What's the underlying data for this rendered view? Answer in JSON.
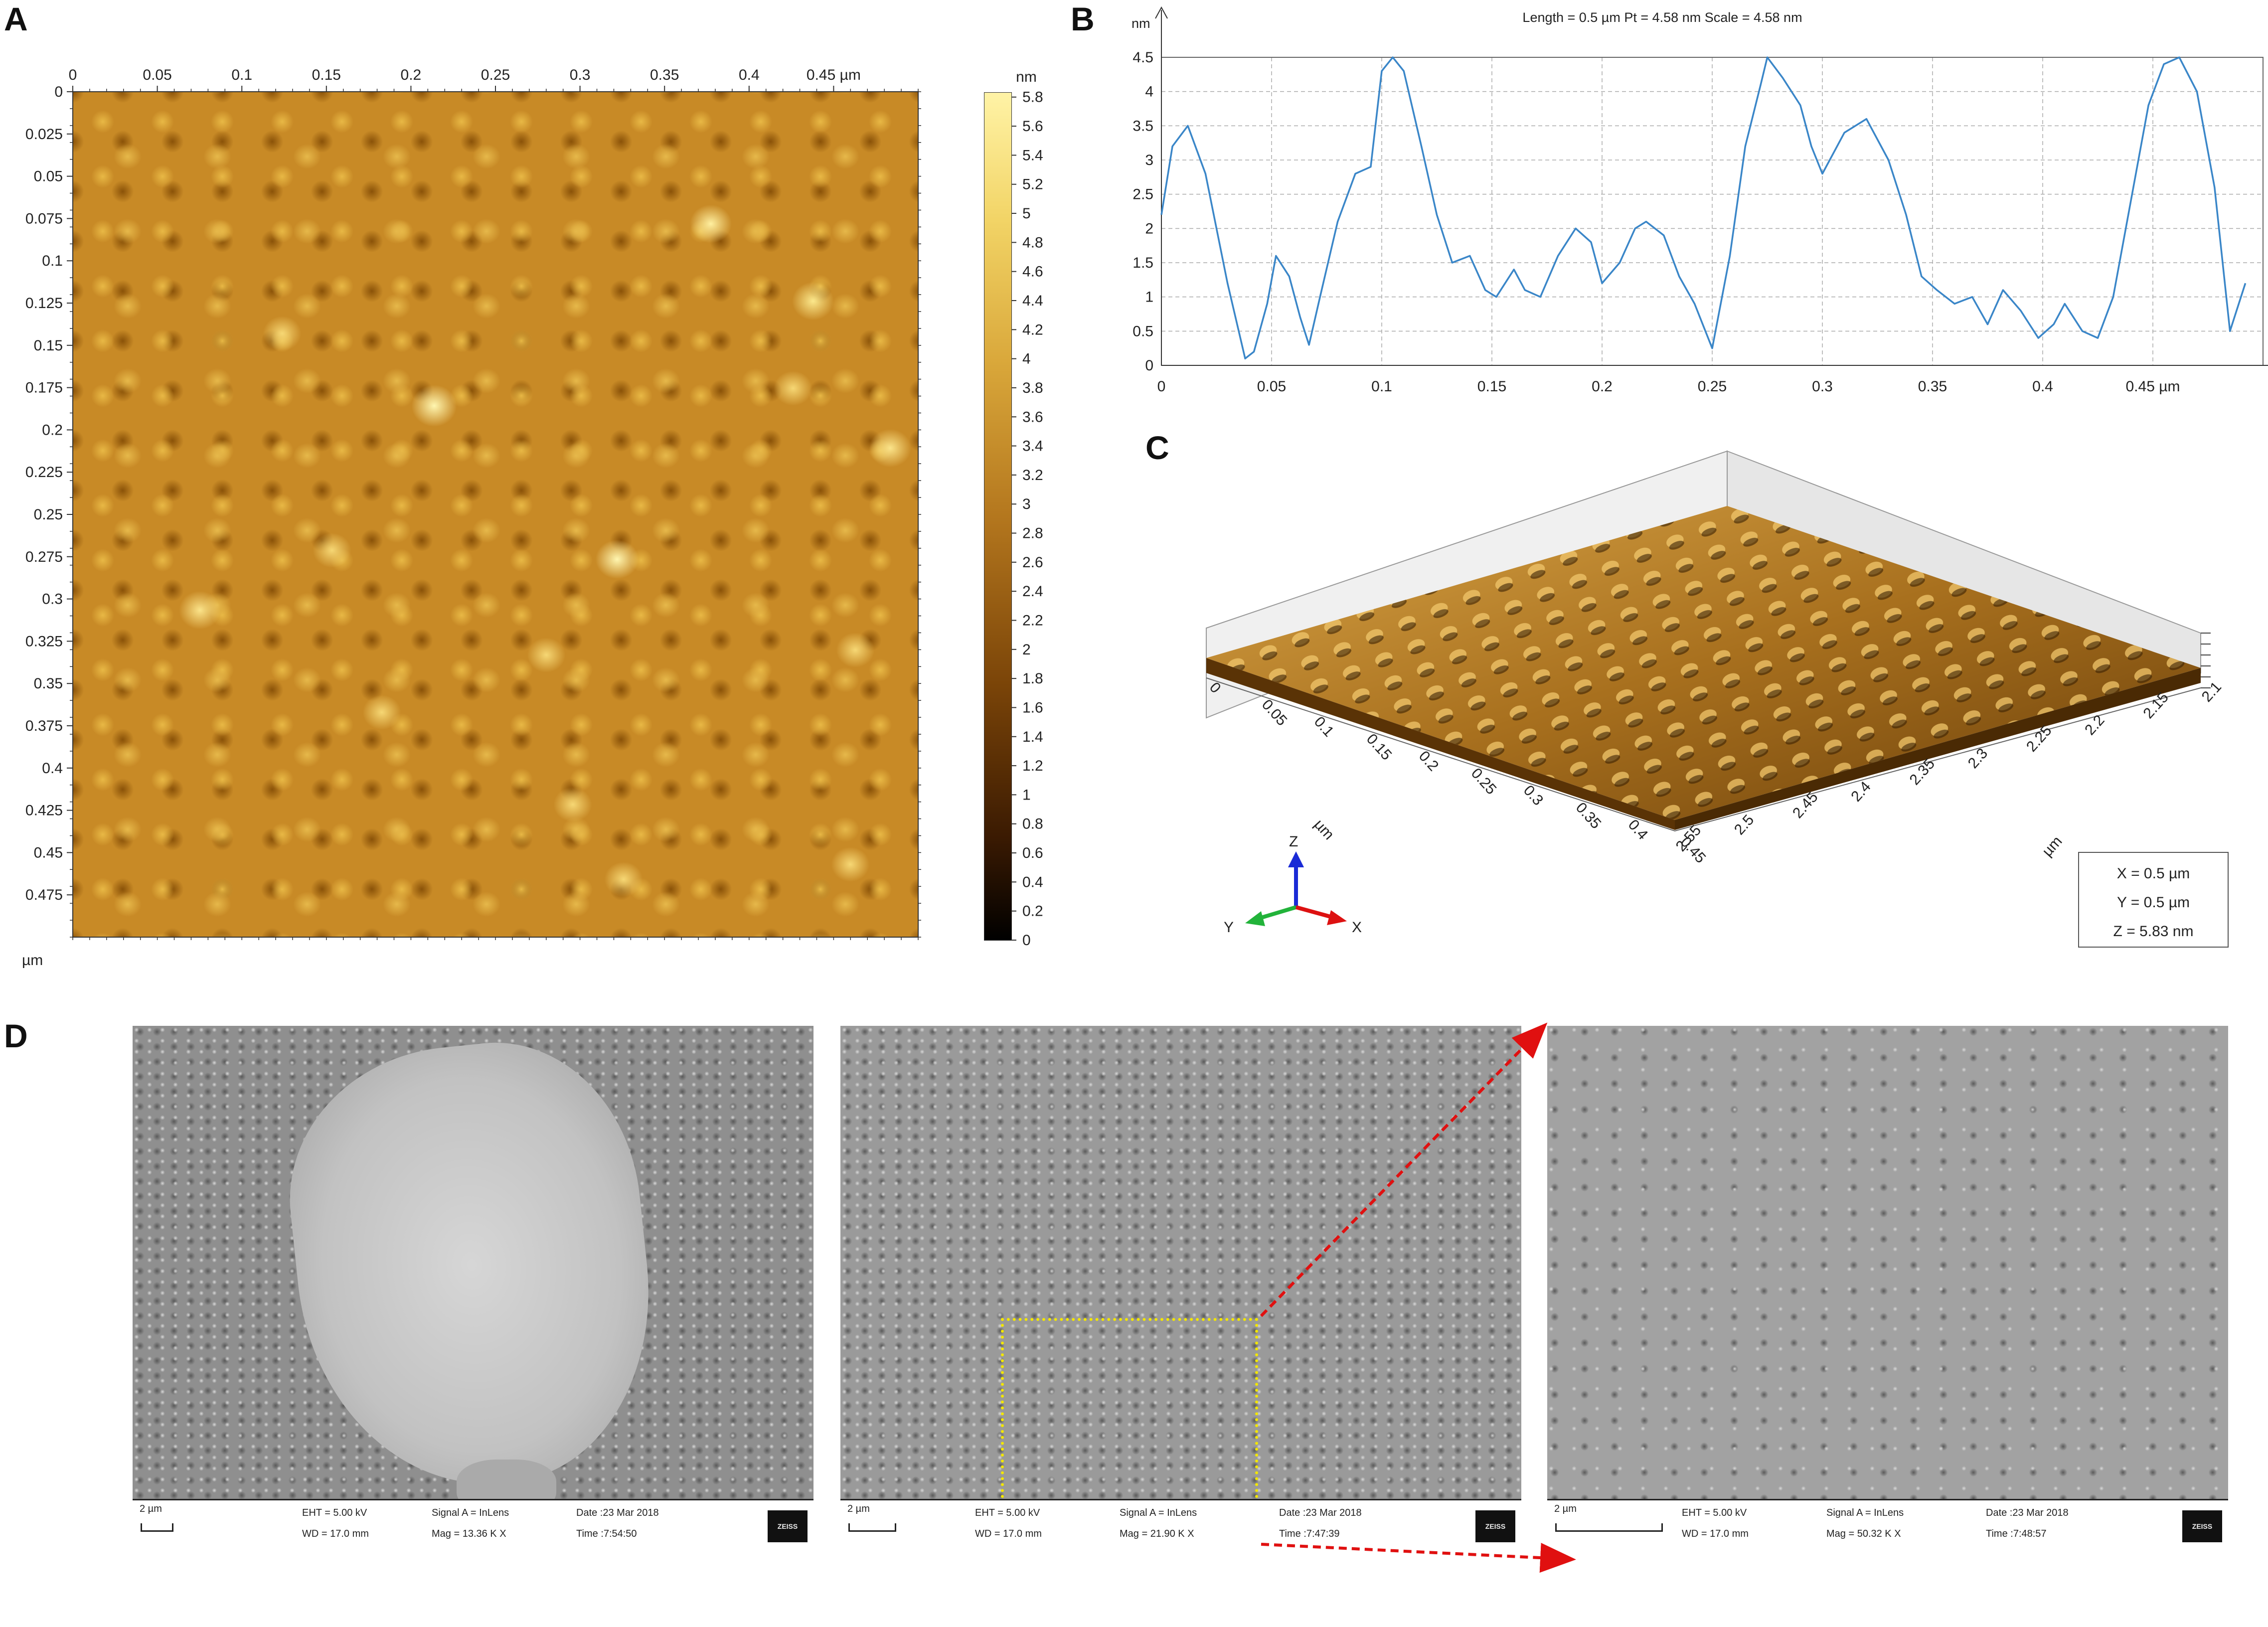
{
  "panels": {
    "A": "A",
    "B": "B",
    "C": "C",
    "D": "D"
  },
  "afm_map": {
    "x_ticks": [
      "0",
      "0.05",
      "0.1",
      "0.15",
      "0.2",
      "0.25",
      "0.3",
      "0.35",
      "0.4",
      "0.45 µm"
    ],
    "y_ticks": [
      "0",
      "0.025",
      "0.05",
      "0.075",
      "0.1",
      "0.125",
      "0.15",
      "0.175",
      "0.2",
      "0.225",
      "0.25",
      "0.275",
      "0.3",
      "0.325",
      "0.35",
      "0.375",
      "0.4",
      "0.425",
      "0.45",
      "0.475"
    ],
    "y_unit": "µm",
    "colorbar_unit": "nm",
    "colorbar_ticks": [
      "5.8",
      "5.6",
      "5.4",
      "5.2",
      "5",
      "4.8",
      "4.6",
      "4.4",
      "4.2",
      "4",
      "3.8",
      "3.6",
      "3.4",
      "3.2",
      "3",
      "2.8",
      "2.6",
      "2.4",
      "2.2",
      "2",
      "1.8",
      "1.6",
      "1.4",
      "1.2",
      "1",
      "0.8",
      "0.6",
      "0.4",
      "0.2",
      "0"
    ]
  },
  "chart_data": {
    "type": "line",
    "title": "Length = 0.5 µm  Pt = 4.58 nm  Scale = 4.58 nm",
    "ylabel": "nm",
    "x_unit": "µm",
    "xlim": [
      0,
      0.5
    ],
    "ylim": [
      0,
      4.5
    ],
    "x_ticks": [
      "0",
      "0.05",
      "0.1",
      "0.15",
      "0.2",
      "0.25",
      "0.3",
      "0.35",
      "0.4",
      "0.45 µm"
    ],
    "y_ticks": [
      "0",
      "0.5",
      "1",
      "1.5",
      "2",
      "2.5",
      "3",
      "3.5",
      "4",
      "4.5"
    ],
    "series": [
      {
        "color": "#3a86c8",
        "x": [
          0,
          0.005,
          0.012,
          0.02,
          0.03,
          0.038,
          0.042,
          0.048,
          0.052,
          0.058,
          0.063,
          0.067,
          0.072,
          0.08,
          0.088,
          0.095,
          0.1,
          0.105,
          0.11,
          0.118,
          0.125,
          0.132,
          0.14,
          0.147,
          0.152,
          0.16,
          0.165,
          0.172,
          0.18,
          0.188,
          0.195,
          0.2,
          0.208,
          0.215,
          0.22,
          0.228,
          0.235,
          0.242,
          0.25,
          0.258,
          0.265,
          0.272,
          0.275,
          0.282,
          0.29,
          0.295,
          0.3,
          0.31,
          0.32,
          0.33,
          0.338,
          0.345,
          0.352,
          0.36,
          0.368,
          0.375,
          0.382,
          0.39,
          0.398,
          0.405,
          0.41,
          0.418,
          0.425,
          0.432,
          0.44,
          0.448,
          0.455,
          0.462,
          0.47,
          0.478,
          0.485,
          0.492
        ],
        "y": [
          2.2,
          3.2,
          3.5,
          2.8,
          1.2,
          0.1,
          0.2,
          0.9,
          1.6,
          1.3,
          0.7,
          0.3,
          1.0,
          2.1,
          2.8,
          2.9,
          4.3,
          4.5,
          4.3,
          3.2,
          2.2,
          1.5,
          1.6,
          1.1,
          1.0,
          1.4,
          1.1,
          1.0,
          1.6,
          2.0,
          1.8,
          1.2,
          1.5,
          2.0,
          2.1,
          1.9,
          1.3,
          0.9,
          0.25,
          1.6,
          3.2,
          4.1,
          4.5,
          4.2,
          3.8,
          3.2,
          2.8,
          3.4,
          3.6,
          3.0,
          2.2,
          1.3,
          1.1,
          0.9,
          1.0,
          0.6,
          1.1,
          0.8,
          0.4,
          0.6,
          0.9,
          0.5,
          0.4,
          1.0,
          2.4,
          3.8,
          4.4,
          4.5,
          4.0,
          2.6,
          0.5,
          1.2
        ]
      }
    ]
  },
  "surface3d": {
    "x_ticks": [
      "0",
      "0.05",
      "0.1",
      "0.15",
      "0.2",
      "0.25",
      "0.3",
      "0.35",
      "0.4",
      "0.45"
    ],
    "x_unit": "µm",
    "y_ticks": [
      "2.55",
      "2.5",
      "2.45",
      "2.4",
      "2.35",
      "2.3",
      "2.25",
      "2.2",
      "2.15",
      "2.1"
    ],
    "y_unit": "µm",
    "legend": [
      "X = 0.5 µm",
      "Y = 0.5 µm",
      "Z = 5.83 nm"
    ],
    "axes": {
      "x": "X",
      "y": "Y",
      "z": "Z"
    }
  },
  "sem": [
    {
      "scale": "2 µm",
      "eht": "EHT =  5.00 kV",
      "wd": "WD = 17.0 mm",
      "signal": "Signal A = InLens",
      "mag": "Mag =  13.36 K X",
      "date": "Date :23 Mar 2018",
      "time": "Time :7:54:50",
      "logo": "ZEISS"
    },
    {
      "scale": "2 µm",
      "eht": "EHT =  5.00 kV",
      "wd": "WD = 17.0 mm",
      "signal": "Signal A = InLens",
      "mag": "Mag =  21.90 K X",
      "date": "Date :23 Mar 2018",
      "time": "Time :7:47:39",
      "logo": "ZEISS"
    },
    {
      "scale": "2 µm",
      "eht": "EHT =  5.00 kV",
      "wd": "WD = 17.0 mm",
      "signal": "Signal A = InLens",
      "mag": "Mag =  50.32 K X",
      "date": "Date :23 Mar 2018",
      "time": "Time :7:48:57",
      "logo": "ZEISS"
    }
  ]
}
